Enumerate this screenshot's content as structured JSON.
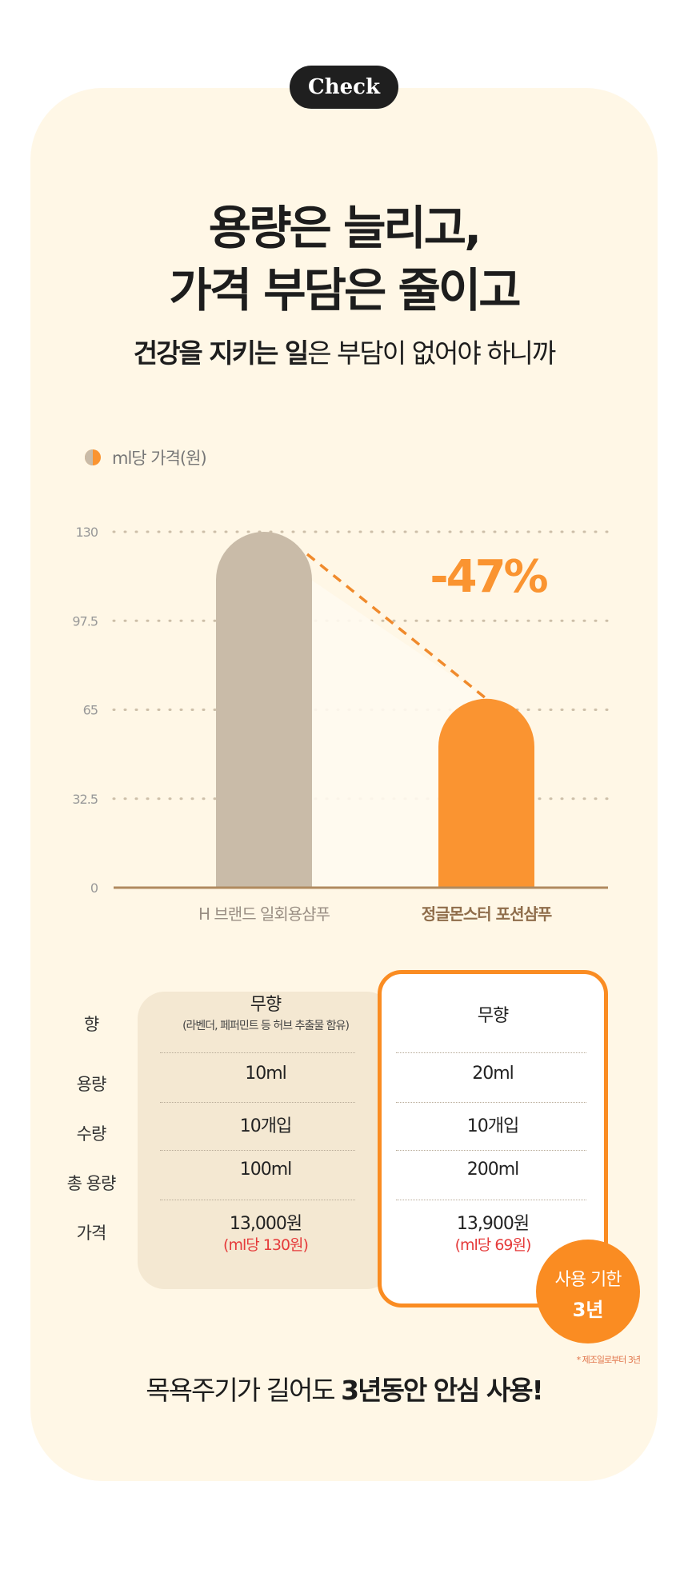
{
  "badge": "Check",
  "headline": {
    "line1": "용량은 늘리고,",
    "line2": "가격 부담은 줄이고"
  },
  "subtitle": {
    "bold": "건강을 지키는 일",
    "rest": "은 부담이 없어야 하니까"
  },
  "chart_data": {
    "type": "bar",
    "legend": "ml당 가격(원)",
    "categories": [
      "H 브랜드 일회용샴푸",
      "정글몬스터 포션샴푸"
    ],
    "values": [
      130,
      69
    ],
    "yticks": [
      "0",
      "32.5",
      "65",
      "97.5",
      "130"
    ],
    "ylim": [
      0,
      130
    ],
    "annotation": "-47%",
    "colors": {
      "bar1": "#c9bba8",
      "bar2": "#fa9431",
      "dash": "#f08a2c",
      "axis": "#b08a5f"
    }
  },
  "table": {
    "row_labels": [
      "향",
      "용량",
      "수량",
      "총 용량",
      "가격"
    ],
    "left": {
      "scent": "무향",
      "scent_note": "(라벤더, 페퍼민트 등 허브 추출물 함유)",
      "volume": "10ml",
      "count": "10개입",
      "total": "100ml",
      "price": "13,000원",
      "per_ml": "(ml당 130원)"
    },
    "right": {
      "scent": "무향",
      "volume": "20ml",
      "count": "10개입",
      "total": "200ml",
      "price": "13,900원",
      "per_ml": "(ml당 69원)"
    }
  },
  "expiry": {
    "line1": "사용 기한",
    "line2": "3년"
  },
  "footnote": "* 제조일로부터 3년",
  "bottom": {
    "pre": "목욕주기가 길어도 ",
    "bold": "3년동안 안심 사용!"
  }
}
